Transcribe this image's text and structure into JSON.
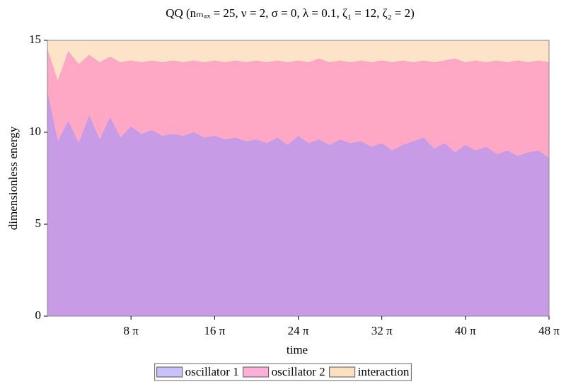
{
  "chart_data": {
    "type": "stacked_area",
    "title": "QQ  (nₘₐₓ = 25, ν = 2, σ = 0, λ = 0.1, ζ₁ = 12, ζ₂ = 2)",
    "x_label": "time",
    "y_label": "dimensionless energy",
    "x": [
      0,
      3.14,
      6.28,
      9.42,
      12.57,
      15.71,
      18.85,
      21.99,
      25.13,
      28.27,
      31.42,
      34.56,
      37.7,
      40.84,
      43.98,
      47.12,
      50.27,
      53.41,
      56.55,
      59.69,
      62.83,
      65.97,
      69.12,
      72.26,
      75.4,
      78.54,
      81.68,
      84.82,
      87.96,
      91.11,
      94.25,
      97.39,
      100.53,
      103.67,
      106.81,
      109.96,
      113.1,
      116.24,
      119.38,
      122.52,
      125.66,
      128.81,
      131.95,
      135.09,
      138.23,
      141.37,
      144.51,
      147.65,
      150.8
    ],
    "series": [
      {
        "name": "oscillator 1",
        "color": "#c79be6",
        "legend_color": "#c8c0ff",
        "values": [
          12.2,
          9.5,
          10.6,
          9.4,
          10.9,
          9.6,
          10.8,
          9.7,
          10.3,
          9.9,
          10.1,
          9.8,
          9.9,
          9.8,
          10.0,
          9.7,
          9.8,
          9.6,
          9.7,
          9.5,
          9.6,
          9.4,
          9.7,
          9.3,
          9.8,
          9.4,
          9.6,
          9.3,
          9.6,
          9.4,
          9.5,
          9.2,
          9.4,
          9.0,
          9.3,
          9.5,
          9.7,
          9.1,
          9.4,
          8.9,
          9.3,
          9.0,
          9.2,
          8.8,
          9.0,
          8.7,
          8.9,
          9.0,
          8.6
        ]
      },
      {
        "name": "oscillator 2",
        "color": "#ffa8c5",
        "legend_color": "#ffb0d8",
        "values": [
          2.3,
          3.3,
          3.8,
          4.3,
          3.3,
          4.2,
          3.3,
          4.1,
          3.6,
          3.9,
          3.8,
          4.0,
          4.0,
          4.0,
          3.9,
          4.1,
          4.1,
          4.2,
          4.2,
          4.3,
          4.3,
          4.4,
          4.2,
          4.5,
          4.1,
          4.4,
          4.4,
          4.5,
          4.3,
          4.4,
          4.4,
          4.6,
          4.5,
          4.8,
          4.6,
          4.3,
          4.2,
          4.7,
          4.5,
          5.1,
          4.5,
          4.9,
          4.6,
          5.1,
          4.8,
          5.2,
          4.9,
          4.9,
          5.2
        ]
      },
      {
        "name": "interaction",
        "color": "#fde3c8",
        "legend_color": "#fde0c0",
        "values": [
          0.5,
          2.2,
          0.6,
          1.3,
          0.8,
          1.2,
          0.9,
          1.2,
          1.1,
          1.2,
          1.1,
          1.2,
          1.1,
          1.2,
          1.1,
          1.2,
          1.1,
          1.2,
          1.1,
          1.2,
          1.1,
          1.2,
          1.1,
          1.2,
          1.1,
          1.2,
          1.0,
          1.2,
          1.1,
          1.2,
          1.1,
          1.2,
          1.1,
          1.2,
          1.1,
          1.2,
          1.1,
          1.2,
          1.1,
          1.0,
          1.2,
          1.1,
          1.2,
          1.1,
          1.2,
          1.1,
          1.2,
          1.1,
          1.2
        ]
      }
    ],
    "xlim": [
      0,
      150.8
    ],
    "ylim": [
      0,
      15
    ],
    "xticks": [
      {
        "value": 25.13,
        "label": "8 π"
      },
      {
        "value": 50.27,
        "label": "16 π"
      },
      {
        "value": 75.4,
        "label": "24 π"
      },
      {
        "value": 100.53,
        "label": "32 π"
      },
      {
        "value": 125.66,
        "label": "40 π"
      },
      {
        "value": 150.8,
        "label": "48 π"
      }
    ],
    "yticks": [
      0,
      5,
      10,
      15
    ],
    "legend": "bottom"
  }
}
